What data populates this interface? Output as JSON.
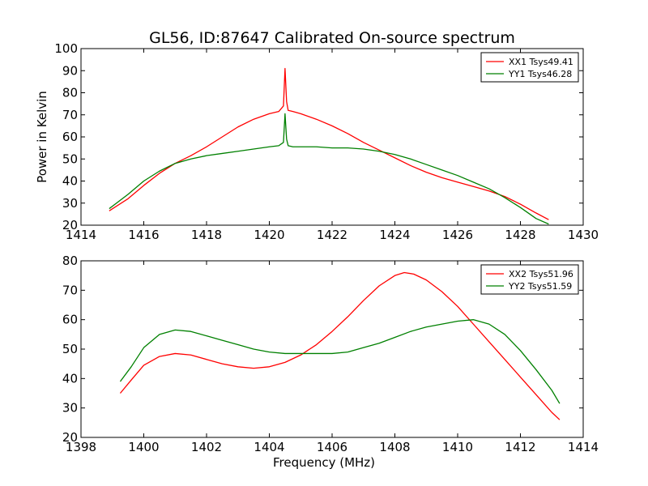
{
  "figure": {
    "title": "GL56, ID:87647 Calibrated On-source spectrum"
  },
  "chart_data": [
    {
      "type": "line",
      "title": "GL56, ID:87647 Calibrated On-source spectrum",
      "xlabel": "",
      "ylabel": "Power in Kelvin",
      "xlim": [
        1414,
        1430
      ],
      "ylim": [
        20,
        100
      ],
      "xticks": [
        1414,
        1416,
        1418,
        1420,
        1422,
        1424,
        1426,
        1428,
        1430
      ],
      "yticks": [
        20,
        30,
        40,
        50,
        60,
        70,
        80,
        90,
        100
      ],
      "grid": false,
      "legend_position": "upper right",
      "series": [
        {
          "name": "XX1 Tsys49.41",
          "color": "#ff0000",
          "x": [
            1414.9,
            1415.5,
            1416.0,
            1416.5,
            1417.0,
            1417.5,
            1418.0,
            1418.5,
            1419.0,
            1419.5,
            1420.0,
            1420.3,
            1420.45,
            1420.5,
            1420.55,
            1420.6,
            1420.75,
            1421.0,
            1421.5,
            1422.0,
            1422.5,
            1423.0,
            1423.5,
            1424.0,
            1424.5,
            1425.0,
            1425.5,
            1426.0,
            1426.5,
            1427.0,
            1427.5,
            1428.0,
            1428.5,
            1428.9
          ],
          "y": [
            26.5,
            32.0,
            38.0,
            43.5,
            48.0,
            51.5,
            55.5,
            60.0,
            64.5,
            68.0,
            70.5,
            71.5,
            74.0,
            91.0,
            76.0,
            72.0,
            71.5,
            70.5,
            68.0,
            65.0,
            61.5,
            57.5,
            54.0,
            50.5,
            47.0,
            44.0,
            41.5,
            39.5,
            37.5,
            35.5,
            33.0,
            29.5,
            25.5,
            22.5
          ]
        },
        {
          "name": "YY1 Tsys46.28",
          "color": "#008000",
          "x": [
            1414.9,
            1415.5,
            1416.0,
            1416.5,
            1417.0,
            1417.5,
            1418.0,
            1418.5,
            1419.0,
            1419.5,
            1420.0,
            1420.3,
            1420.45,
            1420.5,
            1420.55,
            1420.6,
            1420.75,
            1421.0,
            1421.5,
            1422.0,
            1422.5,
            1423.0,
            1423.5,
            1424.0,
            1424.5,
            1425.0,
            1425.5,
            1426.0,
            1426.5,
            1427.0,
            1427.5,
            1428.0,
            1428.5,
            1428.9
          ],
          "y": [
            27.5,
            34.0,
            40.0,
            44.5,
            48.0,
            50.0,
            51.5,
            52.5,
            53.5,
            54.5,
            55.5,
            56.0,
            57.5,
            70.5,
            59.0,
            56.0,
            55.5,
            55.5,
            55.5,
            55.0,
            55.0,
            54.5,
            53.5,
            52.0,
            50.0,
            47.5,
            45.0,
            42.5,
            39.5,
            36.5,
            32.5,
            28.0,
            23.0,
            20.5
          ]
        }
      ]
    },
    {
      "type": "line",
      "title": "",
      "xlabel": "Frequency (MHz)",
      "ylabel": "",
      "xlim": [
        1398,
        1414
      ],
      "ylim": [
        20,
        80
      ],
      "xticks": [
        1398,
        1400,
        1402,
        1404,
        1406,
        1408,
        1410,
        1412,
        1414
      ],
      "yticks": [
        20,
        30,
        40,
        50,
        60,
        70,
        80
      ],
      "grid": false,
      "legend_position": "upper right",
      "series": [
        {
          "name": "XX2 Tsys51.96",
          "color": "#ff0000",
          "x": [
            1399.25,
            1399.6,
            1400.0,
            1400.5,
            1401.0,
            1401.5,
            1402.0,
            1402.5,
            1403.0,
            1403.5,
            1404.0,
            1404.5,
            1405.0,
            1405.5,
            1406.0,
            1406.5,
            1407.0,
            1407.5,
            1408.0,
            1408.3,
            1408.6,
            1409.0,
            1409.5,
            1410.0,
            1410.5,
            1411.0,
            1411.5,
            1412.0,
            1412.5,
            1413.0,
            1413.25
          ],
          "y": [
            35.0,
            39.5,
            44.5,
            47.5,
            48.5,
            48.0,
            46.5,
            45.0,
            44.0,
            43.5,
            44.0,
            45.5,
            48.0,
            51.5,
            56.0,
            61.0,
            66.5,
            71.5,
            75.0,
            76.0,
            75.5,
            73.5,
            69.5,
            64.5,
            58.5,
            52.5,
            46.5,
            40.5,
            34.5,
            28.5,
            26.0
          ]
        },
        {
          "name": "YY2 Tsys51.59",
          "color": "#008000",
          "x": [
            1399.25,
            1399.6,
            1400.0,
            1400.5,
            1401.0,
            1401.5,
            1402.0,
            1402.5,
            1403.0,
            1403.5,
            1404.0,
            1404.5,
            1405.0,
            1405.5,
            1406.0,
            1406.5,
            1407.0,
            1407.5,
            1408.0,
            1408.5,
            1409.0,
            1409.5,
            1410.0,
            1410.5,
            1411.0,
            1411.5,
            1412.0,
            1412.5,
            1413.0,
            1413.25
          ],
          "y": [
            39.0,
            44.0,
            50.5,
            55.0,
            56.5,
            56.0,
            54.5,
            53.0,
            51.5,
            50.0,
            49.0,
            48.5,
            48.5,
            48.5,
            48.5,
            49.0,
            50.5,
            52.0,
            54.0,
            56.0,
            57.5,
            58.5,
            59.5,
            60.0,
            58.5,
            55.0,
            49.5,
            43.0,
            36.0,
            31.5
          ]
        }
      ]
    }
  ]
}
